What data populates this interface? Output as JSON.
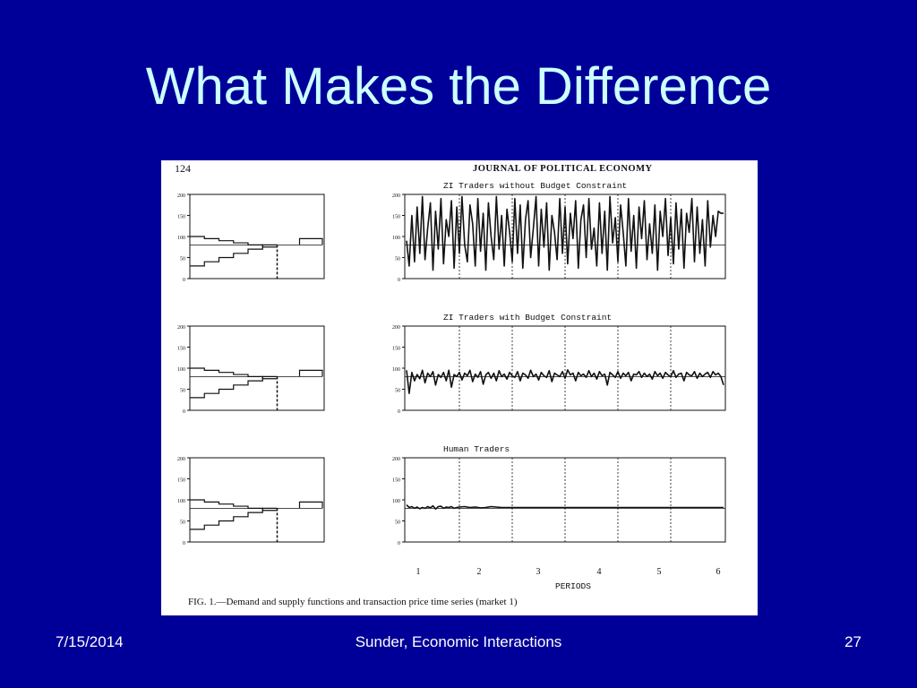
{
  "slide": {
    "title": "What Makes the Difference",
    "footer_date": "7/15/2014",
    "footer_center": "Sunder, Economic Interactions",
    "page_number": "27"
  },
  "figure": {
    "page_no": "124",
    "journal": "JOURNAL OF POLITICAL ECONOMY",
    "panels": [
      {
        "label": "ZI Traders without Budget Constraint"
      },
      {
        "label": "ZI Traders with Budget Constraint"
      },
      {
        "label": "Human Traders"
      }
    ],
    "y_ticks": [
      "200",
      "150",
      "100",
      "50",
      "0"
    ],
    "x_ticks": [
      "1",
      "2",
      "3",
      "4",
      "5",
      "6"
    ],
    "x_label": "PERIODS",
    "caption": "FIG. 1.—Demand and supply functions and transaction price time series (market 1)"
  },
  "chart_data": [
    {
      "type": "line",
      "title": "ZI Traders without Budget Constraint",
      "xlabel": "PERIODS",
      "ylim": [
        0,
        200
      ],
      "xlim": [
        0,
        6
      ],
      "equilibrium_price": 80,
      "x": [
        0.0,
        0.05,
        0.1,
        0.15,
        0.2,
        0.25,
        0.3,
        0.35,
        0.4,
        0.45,
        0.5,
        0.55,
        0.6,
        0.65,
        0.7,
        0.75,
        0.8,
        0.85,
        0.9,
        0.95,
        1.0,
        1.05,
        1.1,
        1.15,
        1.2,
        1.25,
        1.3,
        1.35,
        1.4,
        1.45,
        1.5,
        1.55,
        1.6,
        1.65,
        1.7,
        1.75,
        1.8,
        1.85,
        1.9,
        1.95,
        2.0,
        2.05,
        2.1,
        2.15,
        2.2,
        2.25,
        2.3,
        2.35,
        2.4,
        2.45,
        2.5,
        2.55,
        2.6,
        2.65,
        2.7,
        2.75,
        2.8,
        2.85,
        2.9,
        2.95,
        3.0,
        3.05,
        3.1,
        3.15,
        3.2,
        3.25,
        3.3,
        3.35,
        3.4,
        3.45,
        3.5,
        3.55,
        3.6,
        3.65,
        3.7,
        3.75,
        3.8,
        3.85,
        3.9,
        3.95,
        4.0,
        4.05,
        4.1,
        4.15,
        4.2,
        4.25,
        4.3,
        4.35,
        4.4,
        4.45,
        4.5,
        4.55,
        4.6,
        4.65,
        4.7,
        4.75,
        4.8,
        4.85,
        4.9,
        4.95,
        5.0,
        5.05,
        5.1,
        5.15,
        5.2,
        5.25,
        5.3,
        5.35,
        5.4,
        5.45,
        5.5,
        5.55,
        5.6,
        5.65,
        5.7,
        5.75,
        5.8,
        5.85,
        5.9,
        5.95,
        6.0
      ],
      "y": [
        90,
        30,
        150,
        40,
        170,
        60,
        195,
        45,
        120,
        180,
        20,
        160,
        70,
        190,
        35,
        140,
        100,
        185,
        25,
        170,
        60,
        195,
        80,
        40,
        175,
        130,
        30,
        190,
        65,
        155,
        20,
        180,
        100,
        45,
        195,
        70,
        150,
        30,
        165,
        110,
        40,
        190,
        60,
        175,
        25,
        140,
        185,
        50,
        120,
        195,
        30,
        165,
        75,
        180,
        20,
        150,
        110,
        45,
        190,
        60,
        170,
        35,
        155,
        95,
        185,
        25,
        140,
        175,
        50,
        190,
        70,
        120,
        30,
        180,
        60,
        160,
        20,
        195,
        85,
        145,
        40,
        175,
        110,
        30,
        190,
        65,
        150,
        25,
        170,
        95,
        185,
        45,
        130,
        60,
        175,
        20,
        160,
        100,
        190,
        55,
        145,
        35,
        180,
        70,
        165,
        25,
        155,
        110,
        190,
        40,
        170,
        60,
        140,
        30,
        185,
        75,
        150,
        100,
        160,
        155,
        155
      ]
    },
    {
      "type": "line",
      "title": "ZI Traders with Budget Constraint",
      "xlabel": "PERIODS",
      "ylim": [
        0,
        200
      ],
      "xlim": [
        0,
        6
      ],
      "equilibrium_price": 80,
      "x": [
        0.0,
        0.05,
        0.1,
        0.15,
        0.2,
        0.25,
        0.3,
        0.35,
        0.4,
        0.45,
        0.5,
        0.55,
        0.6,
        0.65,
        0.7,
        0.75,
        0.8,
        0.85,
        0.9,
        0.95,
        1.0,
        1.05,
        1.1,
        1.15,
        1.2,
        1.25,
        1.3,
        1.35,
        1.4,
        1.45,
        1.5,
        1.55,
        1.6,
        1.65,
        1.7,
        1.75,
        1.8,
        1.85,
        1.9,
        1.95,
        2.0,
        2.05,
        2.1,
        2.15,
        2.2,
        2.25,
        2.3,
        2.35,
        2.4,
        2.45,
        2.5,
        2.55,
        2.6,
        2.65,
        2.7,
        2.75,
        2.8,
        2.85,
        2.9,
        2.95,
        3.0,
        3.05,
        3.1,
        3.15,
        3.2,
        3.25,
        3.3,
        3.35,
        3.4,
        3.45,
        3.5,
        3.55,
        3.6,
        3.65,
        3.7,
        3.75,
        3.8,
        3.85,
        3.9,
        3.95,
        4.0,
        4.05,
        4.1,
        4.15,
        4.2,
        4.25,
        4.3,
        4.35,
        4.4,
        4.45,
        4.5,
        4.55,
        4.6,
        4.65,
        4.7,
        4.75,
        4.8,
        4.85,
        4.9,
        4.95,
        5.0,
        5.05,
        5.1,
        5.15,
        5.2,
        5.25,
        5.3,
        5.35,
        5.4,
        5.45,
        5.5,
        5.55,
        5.6,
        5.65,
        5.7,
        5.75,
        5.8,
        5.85,
        5.9,
        5.95,
        6.0
      ],
      "y": [
        95,
        40,
        90,
        70,
        85,
        75,
        95,
        65,
        88,
        80,
        92,
        60,
        85,
        78,
        90,
        70,
        95,
        55,
        85,
        80,
        90,
        72,
        88,
        82,
        95,
        68,
        86,
        78,
        92,
        62,
        84,
        90,
        76,
        88,
        70,
        94,
        80,
        86,
        74,
        90,
        82,
        78,
        92,
        70,
        88,
        84,
        76,
        95,
        80,
        86,
        72,
        90,
        82,
        78,
        94,
        68,
        88,
        84,
        80,
        92,
        76,
        96,
        84,
        88,
        70,
        90,
        82,
        86,
        78,
        94,
        80,
        88,
        74,
        92,
        82,
        86,
        60,
        90,
        84,
        78,
        92,
        76,
        88,
        82,
        90,
        70,
        86,
        84,
        92,
        78,
        88,
        80,
        86,
        74,
        92,
        82,
        88,
        76,
        90,
        84,
        80,
        94,
        78,
        86,
        88,
        70,
        90,
        84,
        82,
        92,
        76,
        88,
        80,
        86,
        90,
        78,
        92,
        84,
        88,
        80,
        60
      ]
    },
    {
      "type": "line",
      "title": "Human Traders",
      "xlabel": "PERIODS",
      "ylim": [
        0,
        200
      ],
      "xlim": [
        0,
        6
      ],
      "equilibrium_price": 80,
      "x": [
        0.0,
        0.05,
        0.1,
        0.15,
        0.2,
        0.25,
        0.3,
        0.35,
        0.4,
        0.45,
        0.5,
        0.55,
        0.6,
        0.65,
        0.7,
        0.75,
        0.8,
        0.85,
        0.9,
        0.95,
        1.0,
        1.1,
        1.2,
        1.3,
        1.4,
        1.5,
        1.6,
        1.7,
        1.8,
        1.9,
        2.0,
        2.2,
        2.4,
        2.6,
        2.8,
        3.0,
        3.2,
        3.4,
        3.6,
        3.8,
        4.0,
        4.2,
        4.4,
        4.6,
        4.8,
        5.0,
        5.2,
        5.4,
        5.6,
        5.8,
        6.0
      ],
      "y": [
        88,
        82,
        84,
        80,
        83,
        79,
        82,
        80,
        84,
        81,
        86,
        78,
        84,
        85,
        80,
        83,
        82,
        84,
        80,
        82,
        83,
        84,
        82,
        83,
        81,
        82,
        84,
        83,
        82,
        82,
        82,
        82,
        82,
        82,
        82,
        82,
        82,
        82,
        82,
        82,
        82,
        82,
        82,
        82,
        82,
        82,
        82,
        82,
        82,
        82,
        82
      ]
    }
  ],
  "supply_demand": {
    "type": "step",
    "ylim": [
      0,
      200
    ],
    "equilibrium_price": 80,
    "demand_steps": [
      100,
      95,
      90,
      85,
      80,
      75
    ],
    "supply_steps": [
      30,
      40,
      50,
      60,
      70,
      80
    ],
    "equilibrium_quantity_fraction": 0.65
  }
}
